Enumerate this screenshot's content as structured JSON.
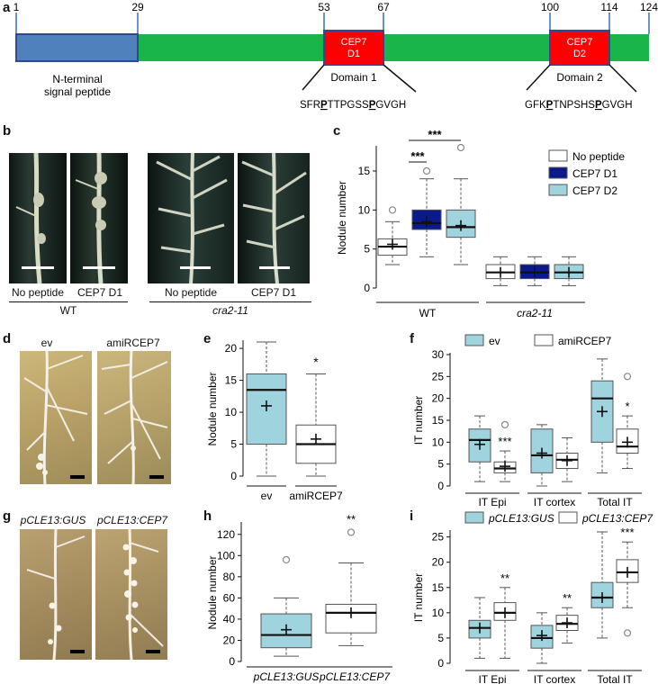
{
  "panels": {
    "a": {
      "label": "a",
      "ticks": [
        "1",
        "29",
        "53",
        "67",
        "100",
        "114",
        "124"
      ],
      "signal_peptide": [
        "N-terminal",
        "signal peptide"
      ],
      "d1_box": [
        "CEP7",
        "D1"
      ],
      "d2_box": [
        "CEP7",
        "D2"
      ],
      "domain1": "Domain 1",
      "domain2": "Domain 2",
      "seq1": {
        "a": "SFR",
        "b": "P",
        "c": "TTPGSS",
        "d": "P",
        "e": "GVGH"
      },
      "seq2": {
        "a": "GFK",
        "b": "P",
        "c": "TNPSHS",
        "d": "P",
        "e": "GVGH"
      },
      "colors": {
        "protein": "#19b44a",
        "signal": "#4f81bd",
        "domain": "#ff0000",
        "outline": "#2e4b8f"
      }
    },
    "b": {
      "label": "b",
      "captions": [
        "No peptide",
        "CEP7 D1",
        "No peptide",
        "CEP7 D1"
      ],
      "groups": [
        "WT",
        "cra2-11"
      ]
    },
    "c": {
      "label": "c",
      "ylabel": "Nodule number",
      "yticks": [
        "0",
        "5",
        "10",
        "15"
      ],
      "groups": [
        "WT",
        "cra2-11"
      ],
      "legend": [
        "No peptide",
        "CEP7 D1",
        "CEP7 D2"
      ],
      "sig": [
        "***",
        "***"
      ],
      "colors": {
        "none": "#ffffff",
        "d1": "#0a1a8c",
        "d2": "#9fd3de"
      }
    },
    "d": {
      "label": "d",
      "captions": [
        "ev",
        "amiRCEP7"
      ]
    },
    "e": {
      "label": "e",
      "ylabel": "Nodule number",
      "yticks": [
        "0",
        "5",
        "10",
        "15",
        "20"
      ],
      "xlabels": [
        "ev",
        "amiRCEP7"
      ],
      "sig": "*"
    },
    "f": {
      "label": "f",
      "ylabel": "IT number",
      "yticks": [
        "0",
        "5",
        "10",
        "15",
        "20",
        "25",
        "30"
      ],
      "legend": [
        "ev",
        "amiRCEP7"
      ],
      "xlabels": [
        "IT Epi",
        "IT cortex",
        "Total IT"
      ],
      "sig": [
        "***",
        "*"
      ]
    },
    "g": {
      "label": "g",
      "captions": [
        "pCLE13:GUS",
        "pCLE13:CEP7"
      ]
    },
    "h": {
      "label": "h",
      "ylabel": "Nodule number",
      "yticks": [
        "0",
        "20",
        "40",
        "60",
        "80",
        "100",
        "120"
      ],
      "xlabels": [
        "pCLE13:GUS",
        "pCLE13:CEP7"
      ],
      "sig": "**"
    },
    "i": {
      "label": "i",
      "ylabel": "IT number",
      "yticks": [
        "0",
        "5",
        "10",
        "15",
        "20",
        "25"
      ],
      "legend": [
        "pCLE13:GUS",
        "pCLE13:CEP7"
      ],
      "xlabels": [
        "IT Epi",
        "IT cortex",
        "Total IT"
      ],
      "sig": [
        "**",
        "**",
        "***"
      ]
    }
  },
  "chart_data": [
    {
      "type": "box",
      "panel": "c",
      "ylabel": "Nodule number",
      "ylim": [
        0,
        18
      ],
      "categories": [
        "WT",
        "cra2-11"
      ],
      "series": [
        {
          "name": "No peptide",
          "boxes": [
            {
              "min": 3,
              "q1": 4.2,
              "median": 5.3,
              "q3": 6.3,
              "max": 8.5,
              "mean": 5.6,
              "outliers": [
                10
              ]
            },
            {
              "min": 0.3,
              "q1": 1.2,
              "median": 2.0,
              "q3": 3.0,
              "max": 4.0,
              "mean": 2.0,
              "outliers": []
            }
          ]
        },
        {
          "name": "CEP7 D1",
          "boxes": [
            {
              "min": 4,
              "q1": 7.5,
              "median": 8.3,
              "q3": 10,
              "max": 14,
              "mean": 8.5,
              "outliers": [
                15
              ]
            },
            {
              "min": 0.3,
              "q1": 1.2,
              "median": 2.0,
              "q3": 3.0,
              "max": 4.0,
              "mean": 2.0,
              "outliers": []
            }
          ]
        },
        {
          "name": "CEP7 D2",
          "boxes": [
            {
              "min": 3,
              "q1": 6.5,
              "median": 7.8,
              "q3": 10,
              "max": 14,
              "mean": 8.0,
              "outliers": [
                18
              ]
            },
            {
              "min": 0.3,
              "q1": 1.2,
              "median": 2.0,
              "q3": 3.0,
              "max": 4.0,
              "mean": 2.0,
              "outliers": []
            }
          ]
        }
      ]
    },
    {
      "type": "box",
      "panel": "e",
      "ylabel": "Nodule number",
      "ylim": [
        0,
        21
      ],
      "categories": [
        "ev",
        "amiRCEP7"
      ],
      "boxes": [
        {
          "min": 0,
          "q1": 5,
          "median": 13.5,
          "q3": 16,
          "max": 21,
          "mean": 11
        },
        {
          "min": 0,
          "q1": 2,
          "median": 5,
          "q3": 8,
          "max": 16,
          "mean": 5.8
        }
      ]
    },
    {
      "type": "box",
      "panel": "f",
      "ylabel": "IT number",
      "ylim": [
        0,
        30
      ],
      "categories": [
        "IT Epi",
        "IT cortex",
        "Total IT"
      ],
      "series": [
        {
          "name": "ev",
          "boxes": [
            {
              "min": 1,
              "q1": 5.5,
              "median": 10.5,
              "q3": 13,
              "max": 16,
              "mean": 9.5,
              "outliers": []
            },
            {
              "min": 0,
              "q1": 3,
              "median": 7,
              "q3": 13,
              "max": 14,
              "mean": 7.5,
              "outliers": []
            },
            {
              "min": 3,
              "q1": 10,
              "median": 20,
              "q3": 24,
              "max": 29,
              "mean": 17,
              "outliers": []
            }
          ]
        },
        {
          "name": "amiRCEP7",
          "boxes": [
            {
              "min": 1,
              "q1": 3,
              "median": 4,
              "q3": 5.5,
              "max": 8,
              "mean": 4.5,
              "outliers": [
                14
              ]
            },
            {
              "min": 1,
              "q1": 4,
              "median": 6,
              "q3": 7.5,
              "max": 11,
              "mean": 5.8,
              "outliers": []
            },
            {
              "min": 4,
              "q1": 7.5,
              "median": 9,
              "q3": 13,
              "max": 16,
              "mean": 10,
              "outliers": [
                25
              ]
            }
          ]
        }
      ]
    },
    {
      "type": "box",
      "panel": "h",
      "ylabel": "Nodule number",
      "ylim": [
        0,
        130
      ],
      "categories": [
        "pCLE13:GUS",
        "pCLE13:CEP7"
      ],
      "boxes": [
        {
          "min": 5,
          "q1": 13,
          "median": 25,
          "q3": 45,
          "max": 60,
          "mean": 30,
          "outliers": [
            96
          ]
        },
        {
          "min": 15,
          "q1": 27,
          "median": 46,
          "q3": 54,
          "max": 93,
          "mean": 46,
          "outliers": [
            122
          ]
        }
      ]
    },
    {
      "type": "box",
      "panel": "i",
      "ylabel": "IT number",
      "ylim": [
        0,
        26
      ],
      "categories": [
        "IT Epi",
        "IT cortex",
        "Total IT"
      ],
      "series": [
        {
          "name": "pCLE13:GUS",
          "boxes": [
            {
              "min": 1,
              "q1": 5,
              "median": 7,
              "q3": 8.5,
              "max": 13,
              "mean": 7,
              "outliers": []
            },
            {
              "min": 0,
              "q1": 3,
              "median": 5,
              "q3": 7.5,
              "max": 10,
              "mean": 5.5,
              "outliers": []
            },
            {
              "min": 5,
              "q1": 11,
              "median": 13,
              "q3": 16,
              "max": 26,
              "mean": 13,
              "outliers": []
            }
          ]
        },
        {
          "name": "pCLE13:CEP7",
          "boxes": [
            {
              "min": 1,
              "q1": 8.5,
              "median": 10,
              "q3": 12,
              "max": 15,
              "mean": 10,
              "outliers": []
            },
            {
              "min": 4,
              "q1": 6.5,
              "median": 7.8,
              "q3": 9.5,
              "max": 11,
              "mean": 8,
              "outliers": []
            },
            {
              "min": 11,
              "q1": 16,
              "median": 18,
              "q3": 20.5,
              "max": 24,
              "mean": 18,
              "outliers": [
                6
              ]
            }
          ]
        }
      ]
    }
  ]
}
